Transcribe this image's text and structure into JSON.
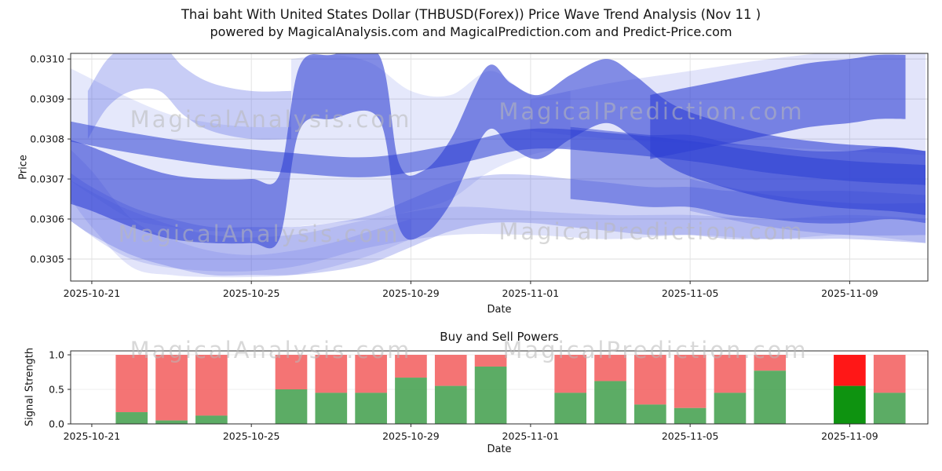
{
  "header": {
    "title_line1": "Thai baht With United States Dollar (THBUSD(Forex)) Price Wave Trend Analysis (Nov 11 )",
    "title_line2": "powered by MagicalAnalysis.com and MagicalPrediction.com and Predict-Price.com"
  },
  "watermarks": {
    "analysis": "MagicalAnalysis.com",
    "prediction": "MagicalPrediction.com"
  },
  "chart_data": [
    {
      "id": "price_wave",
      "type": "area",
      "xlabel": "Date",
      "ylabel": "Price",
      "ylim": [
        0.030445,
        0.031014
      ],
      "xlim_days": [
        0.47,
        21.96
      ],
      "day_base": "2025-10-20",
      "grid": true,
      "band_color": "#4a5ae0",
      "band_color_dark": "#2e3fd4",
      "yticks": [
        {
          "v": 0.0305,
          "label": "0.0305"
        },
        {
          "v": 0.0306,
          "label": "0.0306"
        },
        {
          "v": 0.0307,
          "label": "0.0307"
        },
        {
          "v": 0.0308,
          "label": "0.0308"
        },
        {
          "v": 0.0309,
          "label": "0.0309"
        },
        {
          "v": 0.031,
          "label": "0.0310"
        }
      ],
      "xticks": [
        {
          "day": 1,
          "label": "2025-10-21"
        },
        {
          "day": 5,
          "label": "2025-10-25"
        },
        {
          "day": 9,
          "label": "2025-10-29"
        },
        {
          "day": 12,
          "label": "2025-11-01"
        },
        {
          "day": 16,
          "label": "2025-11-05"
        },
        {
          "day": 20,
          "label": "2025-11-09"
        }
      ],
      "ribbons": [
        {
          "name": "fan-left-wide",
          "opacity": 0.16,
          "upper": [
            [
              0.4,
              0.03078
            ],
            [
              1,
              0.03072
            ],
            [
              2,
              0.0306
            ],
            [
              3,
              0.03055
            ],
            [
              4,
              0.03052
            ],
            [
              5,
              0.03051
            ],
            [
              6,
              0.03052
            ],
            [
              7,
              0.03054
            ],
            [
              8,
              0.03057
            ],
            [
              9,
              0.0306
            ]
          ],
          "lower": [
            [
              0.4,
              0.03066
            ],
            [
              1,
              0.03058
            ],
            [
              2,
              0.03048
            ],
            [
              3,
              0.03046
            ],
            [
              4,
              0.030455
            ],
            [
              5,
              0.030455
            ],
            [
              6,
              0.03046
            ],
            [
              7,
              0.03048
            ],
            [
              8,
              0.03051
            ],
            [
              9,
              0.03055
            ]
          ]
        },
        {
          "name": "flat-low-band",
          "opacity": 0.18,
          "upper": [
            [
              0.4,
              0.0307
            ],
            [
              2,
              0.03062
            ],
            [
              4,
              0.03056
            ],
            [
              6,
              0.03056
            ],
            [
              8,
              0.0306
            ],
            [
              10,
              0.03063
            ],
            [
              12,
              0.03062
            ],
            [
              14,
              0.03061
            ],
            [
              16,
              0.03061
            ],
            [
              18,
              0.0306
            ],
            [
              20,
              0.03061
            ],
            [
              21.9,
              0.0306
            ]
          ],
          "lower": [
            [
              0.4,
              0.0306
            ],
            [
              2,
              0.0305
            ],
            [
              4,
              0.03047
            ],
            [
              6,
              0.03048
            ],
            [
              8,
              0.03053
            ],
            [
              10,
              0.03056
            ],
            [
              12,
              0.03056
            ],
            [
              14,
              0.03055
            ],
            [
              16,
              0.03056
            ],
            [
              18,
              0.03055
            ],
            [
              20,
              0.03056
            ],
            [
              21.9,
              0.03054
            ]
          ]
        },
        {
          "name": "fan-left-top",
          "opacity": 0.14,
          "upper": [
            [
              0.4,
              0.03098
            ],
            [
              1,
              0.03095
            ],
            [
              2,
              0.0309
            ],
            [
              3,
              0.03086
            ],
            [
              4,
              0.03084
            ],
            [
              5,
              0.03083
            ],
            [
              6,
              0.03083
            ]
          ],
          "lower": [
            [
              0.4,
              0.0307
            ],
            [
              1,
              0.03066
            ],
            [
              2,
              0.0306
            ],
            [
              3,
              0.03058
            ],
            [
              4,
              0.03057
            ],
            [
              5,
              0.03057
            ],
            [
              6,
              0.03058
            ]
          ]
        },
        {
          "name": "fan-mid-top",
          "opacity": 0.14,
          "upper": [
            [
              6,
              0.031
            ],
            [
              7,
              0.03101
            ],
            [
              8,
              0.03099
            ],
            [
              9,
              0.03092
            ],
            [
              10,
              0.03091
            ],
            [
              11,
              0.03097
            ],
            [
              12,
              0.03091
            ],
            [
              13,
              0.03092
            ]
          ],
          "lower": [
            [
              6,
              0.03058
            ],
            [
              7,
              0.03059
            ],
            [
              8,
              0.0306
            ],
            [
              9,
              0.03062
            ],
            [
              10,
              0.03065
            ],
            [
              11,
              0.03072
            ],
            [
              12,
              0.03076
            ],
            [
              13,
              0.03078
            ]
          ]
        },
        {
          "name": "fan-right-top",
          "opacity": 0.16,
          "upper": [
            [
              12,
              0.0309
            ],
            [
              14,
              0.03094
            ],
            [
              16,
              0.03097
            ],
            [
              18,
              0.031
            ],
            [
              20,
              0.03102
            ],
            [
              21.9,
              0.03102
            ]
          ],
          "lower": [
            [
              12,
              0.03082
            ],
            [
              14,
              0.0308
            ],
            [
              16,
              0.03079
            ],
            [
              18,
              0.03078
            ],
            [
              20,
              0.03077
            ],
            [
              21.9,
              0.03076
            ]
          ]
        },
        {
          "name": "right-low-med",
          "opacity": 0.28,
          "upper": [
            [
              16,
              0.0307
            ],
            [
              18,
              0.03066
            ],
            [
              20,
              0.03064
            ],
            [
              21.9,
              0.03064
            ]
          ],
          "lower": [
            [
              16,
              0.03062
            ],
            [
              18,
              0.03058
            ],
            [
              20,
              0.03056
            ],
            [
              21.9,
              0.03056
            ]
          ]
        },
        {
          "name": "mid-band",
          "opacity": 0.28,
          "hw": 6e-05,
          "center": [
            [
              0.4,
              0.03066
            ],
            [
              1,
              0.03062
            ],
            [
              2,
              0.03057
            ],
            [
              3,
              0.03054
            ],
            [
              4,
              0.03052
            ],
            [
              5,
              0.03052
            ],
            [
              6,
              0.03052
            ],
            [
              7,
              0.03053
            ],
            [
              8,
              0.03055
            ],
            [
              9,
              0.03059
            ],
            [
              10,
              0.03063
            ],
            [
              11,
              0.03065
            ],
            [
              12,
              0.03065
            ],
            [
              13,
              0.03064
            ],
            [
              14,
              0.03063
            ],
            [
              15,
              0.03062
            ],
            [
              16,
              0.03062
            ],
            [
              17,
              0.03061
            ],
            [
              18,
              0.03061
            ],
            [
              19,
              0.03061
            ],
            [
              20,
              0.03061
            ],
            [
              21.9,
              0.0306
            ]
          ]
        },
        {
          "name": "peak-top-left",
          "opacity": 0.3,
          "hw": 6e-05,
          "center": [
            [
              0.9,
              0.03086
            ],
            [
              1.4,
              0.03094
            ],
            [
              2,
              0.03098
            ],
            [
              2.7,
              0.03098
            ],
            [
              3.3,
              0.03092
            ],
            [
              4,
              0.03088
            ],
            [
              5,
              0.03086
            ],
            [
              6,
              0.03086
            ]
          ]
        },
        {
          "name": "wave-main",
          "opacity": 0.6,
          "dark": true,
          "hw": 8e-05,
          "center": [
            [
              0.4,
              0.03072
            ],
            [
              1,
              0.0307
            ],
            [
              2,
              0.03066
            ],
            [
              3,
              0.03063
            ],
            [
              4,
              0.03062
            ],
            [
              5,
              0.03062
            ],
            [
              5.7,
              0.03063
            ],
            [
              6.2,
              0.0309
            ],
            [
              7,
              0.03093
            ],
            [
              8.2,
              0.03093
            ],
            [
              8.7,
              0.03066
            ],
            [
              9.3,
              0.03064
            ],
            [
              10,
              0.03072
            ],
            [
              10.9,
              0.0309
            ],
            [
              11.5,
              0.03086
            ],
            [
              12.2,
              0.03083
            ],
            [
              13,
              0.03088
            ],
            [
              13.9,
              0.03092
            ],
            [
              14.6,
              0.03088
            ],
            [
              15.5,
              0.03081
            ],
            [
              16.5,
              0.03077
            ],
            [
              18,
              0.03073
            ],
            [
              19.5,
              0.03071
            ],
            [
              21,
              0.0307
            ],
            [
              21.9,
              0.03069
            ]
          ]
        },
        {
          "name": "wave-top-right",
          "opacity": 0.6,
          "dark": true,
          "hw": 8e-05,
          "center": [
            [
              15,
              0.03083
            ],
            [
              16,
              0.03085
            ],
            [
              17,
              0.03087
            ],
            [
              18,
              0.03089
            ],
            [
              19,
              0.03091
            ],
            [
              20,
              0.03092
            ],
            [
              20.7,
              0.03093
            ],
            [
              21.4,
              0.03093
            ]
          ]
        },
        {
          "name": "wave-right-flat",
          "opacity": 0.5,
          "dark": true,
          "hw": 9e-05,
          "center": [
            [
              13,
              0.03074
            ],
            [
              14,
              0.03073
            ],
            [
              15,
              0.03072
            ],
            [
              16,
              0.03072
            ],
            [
              17,
              0.0307
            ],
            [
              18,
              0.03069
            ],
            [
              19,
              0.03068
            ],
            [
              20,
              0.03068
            ],
            [
              21,
              0.03069
            ],
            [
              21.9,
              0.03068
            ]
          ]
        },
        {
          "name": "median-line",
          "opacity": 0.55,
          "dark": true,
          "hw": 2.5e-05,
          "center": [
            [
              0.4,
              0.03082
            ],
            [
              2,
              0.03079
            ],
            [
              4,
              0.03076
            ],
            [
              6,
              0.03074
            ],
            [
              8,
              0.03073
            ],
            [
              10,
              0.03076
            ],
            [
              12,
              0.0308
            ],
            [
              14,
              0.03079
            ],
            [
              16,
              0.03077
            ],
            [
              18,
              0.03074
            ],
            [
              20,
              0.03072
            ],
            [
              21.9,
              0.03071
            ]
          ]
        }
      ]
    },
    {
      "id": "buy_sell_powers",
      "type": "bar",
      "title": "Buy and Sell Powers",
      "xlabel": "Date",
      "ylabel": "Signal Strength",
      "ylim": [
        0,
        1.057
      ],
      "yticks": [
        {
          "v": 0.0,
          "label": "0.0"
        },
        {
          "v": 0.5,
          "label": "0.5"
        },
        {
          "v": 1.0,
          "label": "1.0"
        }
      ],
      "xticks": [
        {
          "day": 1,
          "label": "2025-10-21"
        },
        {
          "day": 5,
          "label": "2025-10-25"
        },
        {
          "day": 9,
          "label": "2025-10-29"
        },
        {
          "day": 12,
          "label": "2025-11-01"
        },
        {
          "day": 16,
          "label": "2025-11-05"
        },
        {
          "day": 20,
          "label": "2025-11-09"
        }
      ],
      "colors": {
        "buy": "#3f9d4a",
        "sell": "#f25c5c",
        "buy_highlight": "#0e9310",
        "sell_highlight": "#ff1717",
        "bar_alpha": 0.85
      },
      "bars": [
        {
          "date": "2025-10-22",
          "day": 2,
          "buy": 0.17,
          "sell": 0.83
        },
        {
          "date": "2025-10-23",
          "day": 3,
          "buy": 0.05,
          "sell": 0.95
        },
        {
          "date": "2025-10-24",
          "day": 4,
          "buy": 0.12,
          "sell": 0.88
        },
        {
          "date": "2025-10-26",
          "day": 6,
          "buy": 0.5,
          "sell": 0.5
        },
        {
          "date": "2025-10-27",
          "day": 7,
          "buy": 0.45,
          "sell": 0.55
        },
        {
          "date": "2025-10-28",
          "day": 8,
          "buy": 0.45,
          "sell": 0.55
        },
        {
          "date": "2025-10-29",
          "day": 9,
          "buy": 0.67,
          "sell": 0.33
        },
        {
          "date": "2025-10-30",
          "day": 10,
          "buy": 0.55,
          "sell": 0.45
        },
        {
          "date": "2025-10-31",
          "day": 11,
          "buy": 0.83,
          "sell": 0.17
        },
        {
          "date": "2025-11-02",
          "day": 13,
          "buy": 0.45,
          "sell": 0.55
        },
        {
          "date": "2025-11-03",
          "day": 14,
          "buy": 0.62,
          "sell": 0.38
        },
        {
          "date": "2025-11-04",
          "day": 15,
          "buy": 0.28,
          "sell": 0.72
        },
        {
          "date": "2025-11-05",
          "day": 16,
          "buy": 0.23,
          "sell": 0.77
        },
        {
          "date": "2025-11-06",
          "day": 17,
          "buy": 0.45,
          "sell": 0.55
        },
        {
          "date": "2025-11-07",
          "day": 18,
          "buy": 0.77,
          "sell": 0.23
        },
        {
          "date": "2025-11-09",
          "day": 20,
          "buy": 0.55,
          "sell": 0.45,
          "highlight": true
        },
        {
          "date": "2025-11-10",
          "day": 21,
          "buy": 0.45,
          "sell": 0.55
        }
      ]
    }
  ]
}
